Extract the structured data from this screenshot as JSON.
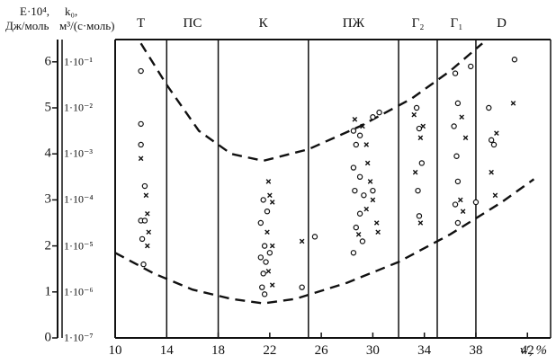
{
  "chart_data": {
    "type": "scatter",
    "y_axis_left_label": [
      "E·10⁴,",
      "Дж/моль"
    ],
    "y_axis_right_label": [
      "k₀,",
      "м³/(с·моль)"
    ],
    "x_axis_label": "vʳ, %",
    "x_ticks": [
      {
        "value": 10,
        "label": "10"
      },
      {
        "value": 14,
        "label": "14"
      },
      {
        "value": 18,
        "label": "18"
      },
      {
        "value": 22,
        "label": "22"
      },
      {
        "value": 26,
        "label": "26"
      },
      {
        "value": 30,
        "label": "30"
      },
      {
        "value": 34,
        "label": "34"
      },
      {
        "value": 38,
        "label": "38"
      },
      {
        "value": 42,
        "label": "42"
      }
    ],
    "xlim": [
      10,
      45
    ],
    "ylim": [
      0,
      6.5
    ],
    "y_ticks_E": [
      {
        "value": 0,
        "label": "0"
      },
      {
        "value": 1,
        "label": "1"
      },
      {
        "value": 2,
        "label": "2"
      },
      {
        "value": 3,
        "label": "3"
      },
      {
        "value": 4,
        "label": "4"
      },
      {
        "value": 5,
        "label": "5"
      },
      {
        "value": 6,
        "label": "6"
      }
    ],
    "y_ticks_k": [
      {
        "value": 0,
        "label": "1·10⁻⁷"
      },
      {
        "value": 1,
        "label": "1·10⁻⁶"
      },
      {
        "value": 2,
        "label": "1·10⁻⁵"
      },
      {
        "value": 3,
        "label": "1·10⁻⁴"
      },
      {
        "value": 4,
        "label": "1·10⁻³"
      },
      {
        "value": 5,
        "label": "1·10⁻²"
      },
      {
        "value": 6,
        "label": "1·10⁻¹"
      }
    ],
    "zone_boundaries": [
      14,
      18,
      25,
      32,
      35,
      38
    ],
    "zones": [
      {
        "label": "Т",
        "x": 12
      },
      {
        "label": "ПС",
        "x": 16
      },
      {
        "label": "К",
        "x": 21.5
      },
      {
        "label": "ПЖ",
        "x": 28.5
      },
      {
        "label": "Г₂",
        "x": 33.5
      },
      {
        "label": "Г₁",
        "x": 36.5
      },
      {
        "label": "D",
        "x": 40
      }
    ],
    "upper_envelope": [
      [
        12,
        6.4
      ],
      [
        14,
        5.5
      ],
      [
        16.5,
        4.5
      ],
      [
        19,
        4.0
      ],
      [
        21.5,
        3.85
      ],
      [
        25,
        4.1
      ],
      [
        29,
        4.6
      ],
      [
        33,
        5.2
      ],
      [
        36,
        5.8
      ],
      [
        38.5,
        6.4
      ]
    ],
    "lower_envelope": [
      [
        10,
        1.85
      ],
      [
        13,
        1.4
      ],
      [
        16,
        1.05
      ],
      [
        19,
        0.85
      ],
      [
        21.5,
        0.75
      ],
      [
        24,
        0.85
      ],
      [
        28,
        1.2
      ],
      [
        32,
        1.65
      ],
      [
        36,
        2.25
      ],
      [
        40,
        2.95
      ],
      [
        42.5,
        3.45
      ]
    ],
    "series": [
      {
        "marker": "circle",
        "points": [
          [
            12,
            5.8
          ],
          [
            12,
            4.65
          ],
          [
            12,
            4.2
          ],
          [
            12.3,
            3.3
          ],
          [
            12,
            2.55
          ],
          [
            12.3,
            2.55
          ],
          [
            12.1,
            2.15
          ],
          [
            12.2,
            1.6
          ],
          [
            21.5,
            3.0
          ],
          [
            21.8,
            2.75
          ],
          [
            21.3,
            2.5
          ],
          [
            21.6,
            2.0
          ],
          [
            22.0,
            1.85
          ],
          [
            21.7,
            1.65
          ],
          [
            21.3,
            1.75
          ],
          [
            21.5,
            1.4
          ],
          [
            21.4,
            1.1
          ],
          [
            21.6,
            0.95
          ],
          [
            24.5,
            1.1
          ],
          [
            25.5,
            2.2
          ],
          [
            28.5,
            4.5
          ],
          [
            28.7,
            4.2
          ],
          [
            29,
            4.4
          ],
          [
            28.5,
            3.7
          ],
          [
            29,
            3.5
          ],
          [
            28.6,
            3.2
          ],
          [
            29.3,
            3.1
          ],
          [
            29.0,
            2.7
          ],
          [
            28.7,
            2.4
          ],
          [
            29.2,
            2.1
          ],
          [
            28.5,
            1.85
          ],
          [
            30,
            4.8
          ],
          [
            30.5,
            4.9
          ],
          [
            30,
            3.2
          ],
          [
            33.4,
            5.0
          ],
          [
            33.6,
            4.55
          ],
          [
            33.8,
            3.8
          ],
          [
            33.5,
            3.2
          ],
          [
            33.6,
            2.65
          ],
          [
            36.4,
            5.75
          ],
          [
            36.6,
            5.1
          ],
          [
            36.3,
            4.6
          ],
          [
            36.5,
            3.95
          ],
          [
            36.6,
            3.4
          ],
          [
            36.4,
            2.9
          ],
          [
            36.6,
            2.5
          ],
          [
            37.6,
            5.9
          ],
          [
            38.0,
            2.95
          ],
          [
            39,
            5.0
          ],
          [
            39.2,
            4.3
          ],
          [
            39.4,
            4.2
          ],
          [
            41,
            6.05
          ]
        ]
      },
      {
        "marker": "cross",
        "points": [
          [
            12,
            3.9
          ],
          [
            12.4,
            3.1
          ],
          [
            12.5,
            2.7
          ],
          [
            12.6,
            2.3
          ],
          [
            12.5,
            2.0
          ],
          [
            21.9,
            3.4
          ],
          [
            22,
            3.1
          ],
          [
            22.2,
            2.95
          ],
          [
            21.8,
            2.3
          ],
          [
            22.2,
            2.0
          ],
          [
            21.9,
            1.45
          ],
          [
            22.2,
            1.15
          ],
          [
            24.5,
            2.1
          ],
          [
            28.6,
            4.75
          ],
          [
            29.2,
            4.6
          ],
          [
            29.5,
            4.2
          ],
          [
            29.6,
            3.8
          ],
          [
            29.8,
            3.4
          ],
          [
            30.0,
            3.0
          ],
          [
            29.5,
            2.8
          ],
          [
            30.3,
            2.5
          ],
          [
            30.4,
            2.3
          ],
          [
            28.9,
            2.25
          ],
          [
            33.2,
            4.85
          ],
          [
            33.9,
            4.6
          ],
          [
            33.7,
            4.35
          ],
          [
            33.3,
            3.6
          ],
          [
            33.7,
            2.5
          ],
          [
            36.9,
            4.8
          ],
          [
            37.2,
            4.35
          ],
          [
            36.8,
            3.0
          ],
          [
            37.0,
            2.75
          ],
          [
            39.6,
            4.45
          ],
          [
            39.2,
            3.6
          ],
          [
            39.5,
            3.1
          ],
          [
            40.9,
            5.1
          ]
        ]
      }
    ]
  }
}
